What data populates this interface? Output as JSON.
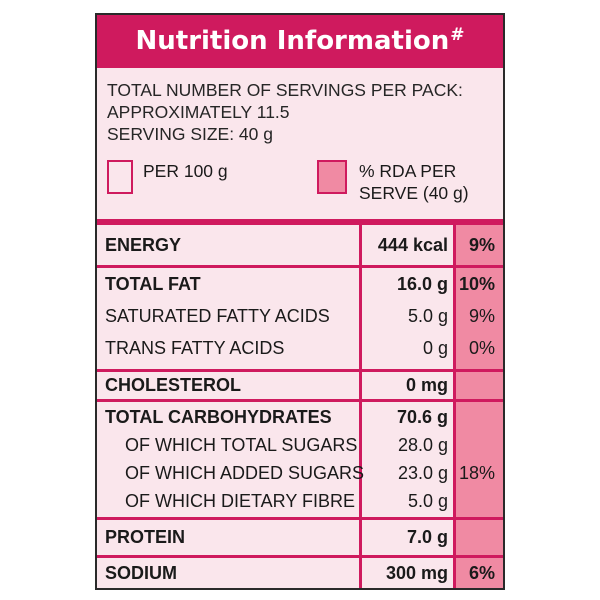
{
  "header": {
    "title": "Nutrition Information",
    "mark": "#"
  },
  "servings": {
    "line1": "TOTAL NUMBER OF SERVINGS PER PACK:",
    "line2": "APPROXIMATELY 11.5",
    "serving_size": "SERVING SIZE: 40 g"
  },
  "legend": {
    "per100": "PER 100 g",
    "rda_line1": "% RDA PER",
    "rda_line2": "SERVE (40 g)"
  },
  "colors": {
    "accent": "#cf1a5e",
    "panel": "#fae6ec",
    "rda": "#f08aa3"
  },
  "rows": [
    {
      "label": "ENERGY",
      "value": "444 kcal",
      "rda": "9%"
    },
    {
      "label": "TOTAL FAT",
      "value": "16.0 g",
      "rda": "10%"
    },
    {
      "label": "SATURATED FATTY ACIDS",
      "value": "5.0 g",
      "rda": "9%"
    },
    {
      "label": "TRANS FATTY ACIDS",
      "value": "0 g",
      "rda": "0%"
    },
    {
      "label": "CHOLESTEROL",
      "value": "0 mg",
      "rda": ""
    },
    {
      "label": "TOTAL CARBOHYDRATES",
      "value": "70.6 g",
      "rda": ""
    },
    {
      "label": "OF WHICH TOTAL SUGARS",
      "value": "28.0 g",
      "rda": ""
    },
    {
      "label": "OF WHICH ADDED SUGARS",
      "value": "23.0 g",
      "rda": "18%"
    },
    {
      "label": "OF WHICH DIETARY FIBRE",
      "value": "5.0 g",
      "rda": ""
    },
    {
      "label": "PROTEIN",
      "value": "7.0 g",
      "rda": ""
    },
    {
      "label": "SODIUM",
      "value": "300 mg",
      "rda": "6%"
    }
  ]
}
